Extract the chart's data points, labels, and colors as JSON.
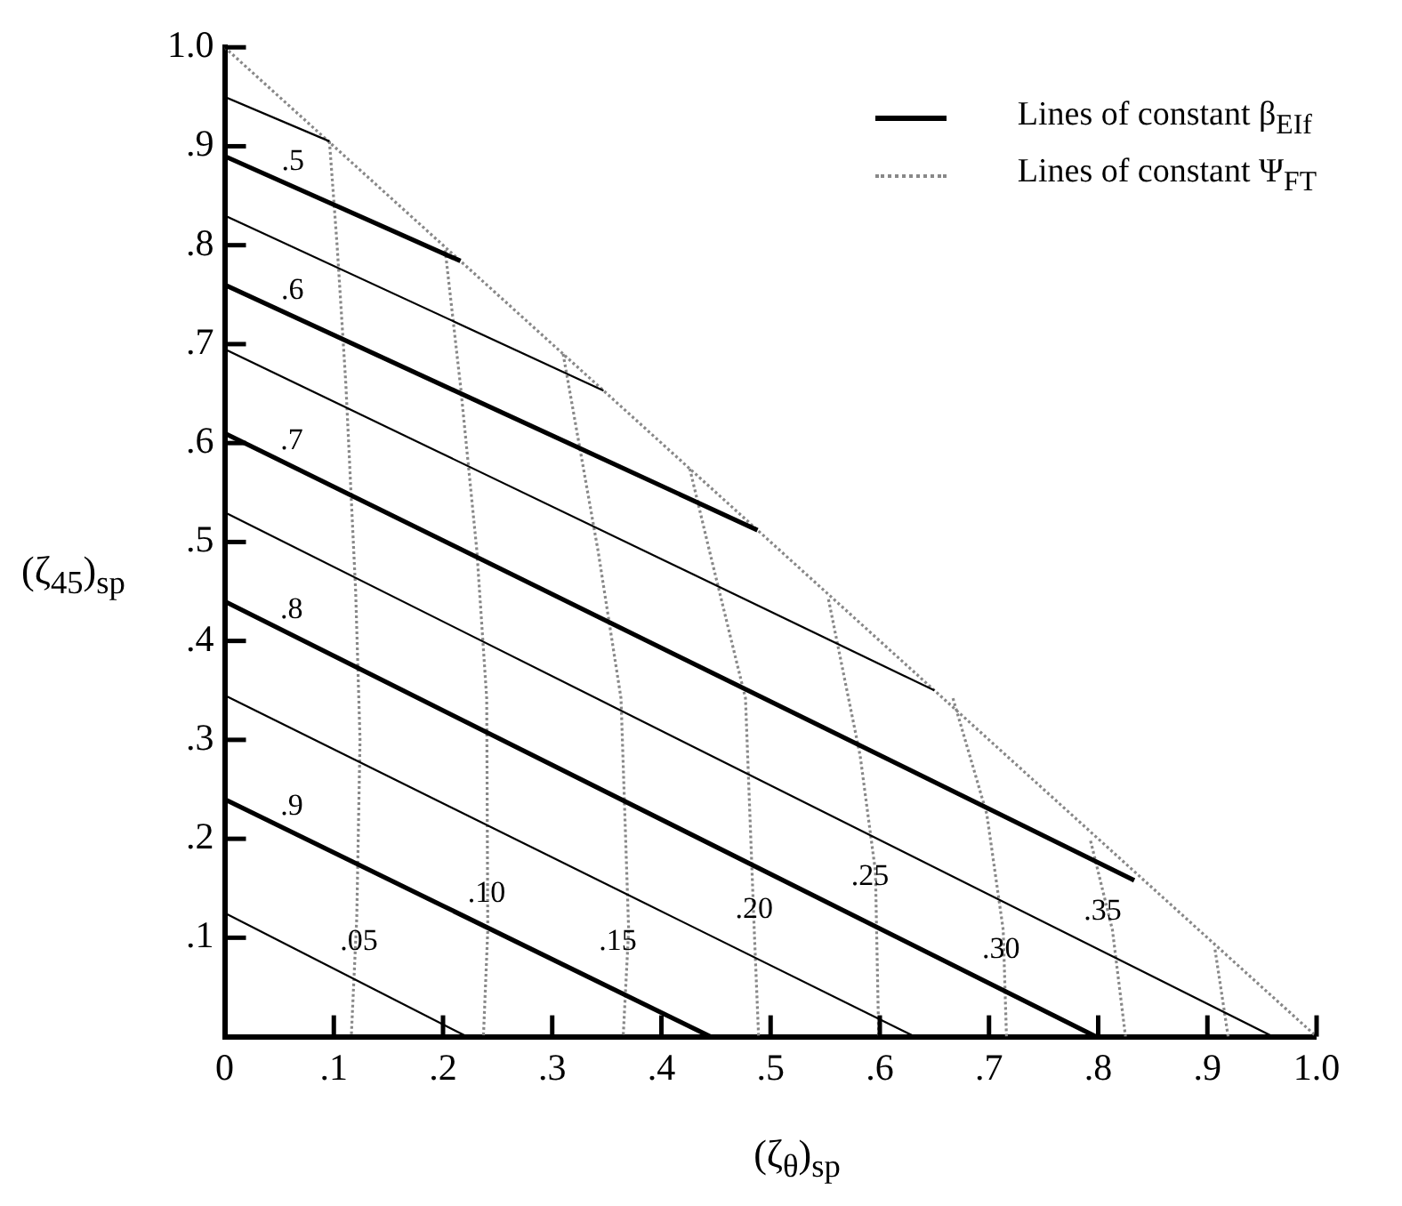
{
  "chart_data": {
    "type": "line",
    "xlabel": "(ζ$_{θ}$)$_{sp}$",
    "ylabel": "(ζ$_{45}$)$_{sp}$",
    "xlim": [
      0,
      1
    ],
    "ylim": [
      0,
      1
    ],
    "xticks": [
      {
        "value": 0,
        "label": "0"
      },
      {
        "value": 0.1,
        "label": ".1"
      },
      {
        "value": 0.2,
        "label": ".2"
      },
      {
        "value": 0.3,
        "label": ".3"
      },
      {
        "value": 0.4,
        "label": ".4"
      },
      {
        "value": 0.5,
        "label": ".5"
      },
      {
        "value": 0.6,
        "label": ".6"
      },
      {
        "value": 0.7,
        "label": ".7"
      },
      {
        "value": 0.8,
        "label": ".8"
      },
      {
        "value": 0.9,
        "label": ".9"
      },
      {
        "value": 1,
        "label": "1.0"
      }
    ],
    "yticks": [
      {
        "value": 0.1,
        "label": ".1"
      },
      {
        "value": 0.2,
        "label": ".2"
      },
      {
        "value": 0.3,
        "label": ".3"
      },
      {
        "value": 0.4,
        "label": ".4"
      },
      {
        "value": 0.5,
        "label": ".5"
      },
      {
        "value": 0.6,
        "label": ".6"
      },
      {
        "value": 0.7,
        "label": ".7"
      },
      {
        "value": 0.8,
        "label": ".8"
      },
      {
        "value": 0.9,
        "label": ".9"
      },
      {
        "value": 1,
        "label": "1.0"
      }
    ],
    "grid": false,
    "marker": "none",
    "series": [
      {
        "name": ".5",
        "color": "#000000",
        "line_style": "solid",
        "x": [
          0,
          0.216
        ],
        "values": [
          0.89,
          0.784
        ]
      },
      {
        "name": ".6",
        "color": "#000000",
        "line_style": "solid",
        "x": [
          0,
          0.488
        ],
        "values": [
          0.76,
          0.512
        ]
      },
      {
        "name": ".7",
        "color": "#000000",
        "line_style": "solid",
        "x": [
          0,
          0.833
        ],
        "values": [
          0.61,
          0.158
        ]
      },
      {
        "name": ".8",
        "color": "#000000",
        "line_style": "solid",
        "x": [
          0,
          0.798
        ],
        "values": [
          0.44,
          0
        ]
      },
      {
        "name": ".9",
        "color": "#000000",
        "line_style": "solid",
        "x": [
          0,
          0.445
        ],
        "values": [
          0.24,
          0
        ]
      },
      {
        "color": "#000000",
        "line_style": "solid",
        "x": [
          0,
          0.096
        ],
        "values": [
          0.95,
          0.905
        ]
      },
      {
        "color": "#000000",
        "line_style": "solid",
        "x": [
          0,
          0.347
        ],
        "values": [
          0.83,
          0.653
        ]
      },
      {
        "color": "#000000",
        "line_style": "solid",
        "x": [
          0,
          0.65
        ],
        "values": [
          0.695,
          0.35
        ]
      },
      {
        "color": "#000000",
        "line_style": "solid",
        "x": [
          0,
          0.96
        ],
        "values": [
          0.53,
          0
        ]
      },
      {
        "color": "#000000",
        "line_style": "solid",
        "x": [
          0,
          0.632
        ],
        "values": [
          0.345,
          0
        ]
      },
      {
        "color": "#000000",
        "line_style": "solid",
        "x": [
          0,
          0.222
        ],
        "values": [
          0.125,
          0
        ]
      },
      {
        "color": "#888888",
        "line_style": "dotted",
        "x": [
          0,
          1
        ],
        "values": [
          1,
          0
        ]
      },
      {
        "color": "#888888",
        "line_style": "dotted",
        "x": [
          0.096,
          0.103,
          0.111,
          0.12,
          0.124,
          0.121,
          0.116
        ],
        "values": [
          0.905,
          0.8,
          0.66,
          0.45,
          0.3,
          0.12,
          0
        ]
      },
      {
        "color": "#888888",
        "line_style": "dotted",
        "x": [
          0.202,
          0.216,
          0.231,
          0.24,
          0.241,
          0.237
        ],
        "values": [
          0.795,
          0.658,
          0.491,
          0.342,
          0.108,
          0
        ]
      },
      {
        "color": "#888888",
        "line_style": "dotted",
        "x": [
          0.31,
          0.342,
          0.363,
          0.37,
          0.365
        ],
        "values": [
          0.69,
          0.491,
          0.342,
          0.108,
          0
        ]
      },
      {
        "color": "#888888",
        "line_style": "dotted",
        "x": [
          0.426,
          0.444,
          0.477,
          0.485,
          0.489
        ],
        "values": [
          0.574,
          0.491,
          0.342,
          0.108,
          0
        ]
      },
      {
        "color": "#888888",
        "line_style": "dotted",
        "x": [
          0.553,
          0.582,
          0.596,
          0.599
        ],
        "values": [
          0.442,
          0.284,
          0.167,
          0
        ]
      },
      {
        "color": "#888888",
        "line_style": "dotted",
        "x": [
          0.667,
          0.698,
          0.713,
          0.716
        ],
        "values": [
          0.342,
          0.225,
          0.108,
          0
        ]
      },
      {
        "color": "#888888",
        "line_style": "dotted",
        "x": [
          0.793,
          0.813,
          0.825
        ],
        "values": [
          0.198,
          0.108,
          0
        ]
      },
      {
        "color": "#888888",
        "line_style": "dotted",
        "x": [
          0.907,
          0.919
        ],
        "values": [
          0.088,
          0
        ]
      }
    ],
    "annotations": [
      "Lines of constant β$_{EIf}$",
      "Lines of constant Ψ$_{FT}$",
      {
        "text": ".05",
        "x": 0.123,
        "y": 0.096
      },
      {
        "text": ".10",
        "x": 0.24,
        "y": 0.144
      },
      {
        "text": ".15",
        "x": 0.36,
        "y": 0.096
      },
      {
        "text": ".20",
        "x": 0.485,
        "y": 0.128
      },
      {
        "text": ".25",
        "x": 0.591,
        "y": 0.161
      },
      {
        "text": ".30",
        "x": 0.711,
        "y": 0.088
      },
      {
        "text": ".35",
        "x": 0.804,
        "y": 0.126
      }
    ]
  }
}
